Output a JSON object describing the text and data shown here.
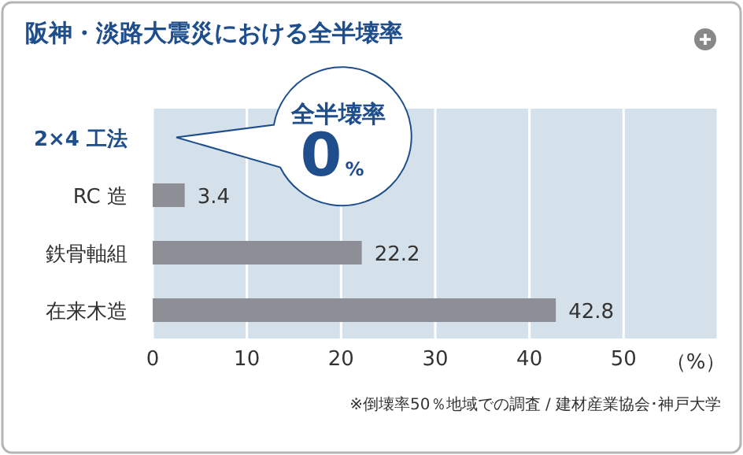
{
  "chart_data": {
    "type": "bar",
    "orientation": "horizontal",
    "title": "阪神・淡路大震災における全半壊率",
    "categories": [
      "2×4 工法",
      "RC 造",
      "鉄骨軸組",
      "在来木造"
    ],
    "values": [
      0,
      3.4,
      22.2,
      42.8
    ],
    "value_labels": [
      null,
      "3.4",
      "22.2",
      "42.8"
    ],
    "color": "#8e8e96",
    "xlim": [
      0,
      60
    ],
    "xticks": [
      0,
      10,
      20,
      30,
      40,
      50
    ],
    "xlabel": "（%）",
    "grid": "x",
    "legend": false,
    "annotations": [
      {
        "text": "全半壊率 0%",
        "x": 0,
        "y": "2×4 工法"
      },
      "※倒壊率50％地域での調査 / 建材産業協会･神戸大学"
    ]
  }
}
